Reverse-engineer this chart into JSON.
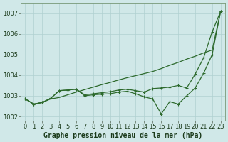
{
  "x": [
    0,
    1,
    2,
    3,
    4,
    5,
    6,
    7,
    8,
    9,
    10,
    11,
    12,
    13,
    14,
    15,
    16,
    17,
    18,
    19,
    20,
    21,
    22,
    23
  ],
  "line_straight": [
    1002.85,
    1002.6,
    1002.68,
    1002.85,
    1002.92,
    1003.05,
    1003.18,
    1003.3,
    1003.42,
    1003.54,
    1003.65,
    1003.77,
    1003.88,
    1003.98,
    1004.08,
    1004.18,
    1004.32,
    1004.48,
    1004.62,
    1004.78,
    1004.92,
    1005.08,
    1005.22,
    1007.1
  ],
  "line_upper": [
    1002.85,
    1002.6,
    1002.68,
    1002.88,
    1003.25,
    1003.28,
    1003.32,
    1003.05,
    1003.1,
    1003.15,
    1003.2,
    1003.28,
    1003.32,
    1003.25,
    1003.18,
    1003.35,
    1003.38,
    1003.42,
    1003.5,
    1003.38,
    1004.05,
    1004.85,
    1006.1,
    1007.1
  ],
  "line_lower": [
    1002.85,
    1002.6,
    1002.68,
    1002.88,
    1003.25,
    1003.28,
    1003.32,
    1003.0,
    1003.05,
    1003.08,
    1003.1,
    1003.18,
    1003.22,
    1003.1,
    1002.95,
    1002.85,
    1002.12,
    1002.72,
    1002.6,
    1003.0,
    1003.38,
    1004.1,
    1005.0,
    1007.1
  ],
  "bg_color": "#d0e8e8",
  "grid_color": "#b0d0d0",
  "line_color": "#2d6a2d",
  "xlabel": "Graphe pression niveau de la mer (hPa)",
  "xlim": [
    -0.5,
    23.5
  ],
  "ylim": [
    1001.8,
    1007.5
  ],
  "yticks": [
    1002,
    1003,
    1004,
    1005,
    1006,
    1007
  ],
  "xticks": [
    0,
    1,
    2,
    3,
    4,
    5,
    6,
    7,
    8,
    9,
    10,
    11,
    12,
    13,
    14,
    15,
    16,
    17,
    18,
    19,
    20,
    21,
    22,
    23
  ],
  "label_fontsize": 7.0,
  "tick_fontsize": 6.0
}
